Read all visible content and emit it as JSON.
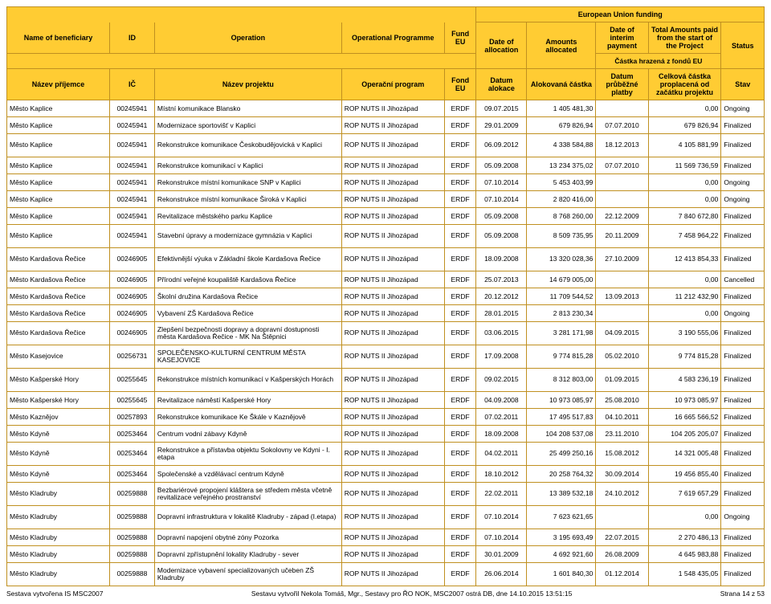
{
  "headers": {
    "euFunding": "European Union funding",
    "en": {
      "beneficiary": "Name of beneficiary",
      "id": "ID",
      "operation": "Operation",
      "programme": "Operational Programme",
      "fund": "Fund EU",
      "dateAlloc": "Date of allocation",
      "amounts": "Amounts allocated",
      "interim": "Date of interim payment",
      "total": "Total Amounts paid from the start of the Project",
      "status": "Status"
    },
    "czSub": "Částka hrazená z fondů EU",
    "cz": {
      "beneficiary": "Název příjemce",
      "id": "IČ",
      "operation": "Název projektu",
      "programme": "Operační program",
      "fund": "Fond EU",
      "dateAlloc": "Datum alokace",
      "amounts": "Alokovaná částka",
      "interim": "Datum průběžné platby",
      "total": "Celková částka proplacená od začátku projektu",
      "status": "Stav"
    }
  },
  "colWidths": [
    "110",
    "48",
    "200",
    "110",
    "34",
    "54",
    "74",
    "56",
    "78",
    "46"
  ],
  "rows": [
    {
      "b": "Město Kaplice",
      "id": "00245941",
      "op": "Místní komunikace Blansko",
      "pg": "ROP NUTS II Jihozápad",
      "fd": "ERDF",
      "da": "09.07.2015",
      "am": "1 405 481,30",
      "di": "",
      "tp": "0,00",
      "st": "Ongoing"
    },
    {
      "b": "Město Kaplice",
      "id": "00245941",
      "op": "Modernizace sportovišť v Kaplici",
      "pg": "ROP NUTS II Jihozápad",
      "fd": "ERDF",
      "da": "29.01.2009",
      "am": "679 826,94",
      "di": "07.07.2010",
      "tp": "679 826,94",
      "st": "Finalized"
    },
    {
      "b": "Město Kaplice",
      "id": "00245941",
      "op": "Rekonstrukce komunikace Českobudějovická v Kaplici",
      "pg": "ROP NUTS II Jihozápad",
      "fd": "ERDF",
      "da": "06.09.2012",
      "am": "4 338 584,88",
      "di": "18.12.2013",
      "tp": "4 105 881,99",
      "st": "Finalized",
      "tall": true
    },
    {
      "b": "Město Kaplice",
      "id": "00245941",
      "op": "Rekonstrukce komunikací v Kaplici",
      "pg": "ROP NUTS II Jihozápad",
      "fd": "ERDF",
      "da": "05.09.2008",
      "am": "13 234 375,02",
      "di": "07.07.2010",
      "tp": "11 569 736,59",
      "st": "Finalized"
    },
    {
      "b": "Město Kaplice",
      "id": "00245941",
      "op": "Rekonstrukce místní komunikace SNP v Kaplici",
      "pg": "ROP NUTS II Jihozápad",
      "fd": "ERDF",
      "da": "07.10.2014",
      "am": "5 453 403,99",
      "di": "",
      "tp": "0,00",
      "st": "Ongoing"
    },
    {
      "b": "Město Kaplice",
      "id": "00245941",
      "op": "Rekonstrukce místní komunikace Široká v Kaplici",
      "pg": "ROP NUTS II Jihozápad",
      "fd": "ERDF",
      "da": "07.10.2014",
      "am": "2 820 416,00",
      "di": "",
      "tp": "0,00",
      "st": "Ongoing"
    },
    {
      "b": "Město Kaplice",
      "id": "00245941",
      "op": "Revitalizace městského parku Kaplice",
      "pg": "ROP NUTS II Jihozápad",
      "fd": "ERDF",
      "da": "05.09.2008",
      "am": "8 768 260,00",
      "di": "22.12.2009",
      "tp": "7 840 672,80",
      "st": "Finalized"
    },
    {
      "b": "Město Kaplice",
      "id": "00245941",
      "op": "Stavební úpravy a modernizace gymnázia v Kaplici",
      "pg": "ROP NUTS II Jihozápad",
      "fd": "ERDF",
      "da": "05.09.2008",
      "am": "8 509 735,95",
      "di": "20.11.2009",
      "tp": "7 458 964,22",
      "st": "Finalized",
      "tall": true
    },
    {
      "b": "Město Kardašova Řečice",
      "id": "00246905",
      "op": "Efektivnější výuka v Základní škole Kardašova Řečice",
      "pg": "ROP NUTS II Jihozápad",
      "fd": "ERDF",
      "da": "18.09.2008",
      "am": "13 320 028,36",
      "di": "27.10.2009",
      "tp": "12 413 854,33",
      "st": "Finalized",
      "tall": true
    },
    {
      "b": "Město Kardašova Řečice",
      "id": "00246905",
      "op": "Přírodní veřejné koupaliště Kardašova Řečice",
      "pg": "ROP NUTS II Jihozápad",
      "fd": "ERDF",
      "da": "25.07.2013",
      "am": "14 679 005,00",
      "di": "",
      "tp": "0,00",
      "st": "Cancelled"
    },
    {
      "b": "Město Kardašova Řečice",
      "id": "00246905",
      "op": "Školní družina Kardašova Řečice",
      "pg": "ROP NUTS II Jihozápad",
      "fd": "ERDF",
      "da": "20.12.2012",
      "am": "11 709 544,52",
      "di": "13.09.2013",
      "tp": "11 212 432,90",
      "st": "Finalized"
    },
    {
      "b": "Město Kardašova Řečice",
      "id": "00246905",
      "op": "Vybavení ZŠ Kardašova Řečice",
      "pg": "ROP NUTS II Jihozápad",
      "fd": "ERDF",
      "da": "28.01.2015",
      "am": "2 813 230,34",
      "di": "",
      "tp": "0,00",
      "st": "Ongoing"
    },
    {
      "b": "Město Kardašova Řečice",
      "id": "00246905",
      "op": "Zlepšení bezpečnosti dopravy a dopravní dostupnosti města Kardašova Řečice - MK Na Štěpnici",
      "pg": "ROP NUTS II Jihozápad",
      "fd": "ERDF",
      "da": "03.06.2015",
      "am": "3 281 171,98",
      "di": "04.09.2015",
      "tp": "3 190 555,06",
      "st": "Finalized",
      "tall": true
    },
    {
      "b": "Město Kasejovice",
      "id": "00256731",
      "op": "SPOLEČENSKO-KULTURNÍ CENTRUM MĚSTA KASEJOVICE",
      "pg": "ROP NUTS II Jihozápad",
      "fd": "ERDF",
      "da": "17.09.2008",
      "am": "9 774 815,28",
      "di": "05.02.2010",
      "tp": "9 774 815,28",
      "st": "Finalized",
      "tall": true
    },
    {
      "b": "Město Kašperské Hory",
      "id": "00255645",
      "op": "Rekonstrukce místních komunikací v Kašperských Horách",
      "pg": "ROP NUTS II Jihozápad",
      "fd": "ERDF",
      "da": "09.02.2015",
      "am": "8 312 803,00",
      "di": "01.09.2015",
      "tp": "4 583 236,19",
      "st": "Finalized",
      "tall": true
    },
    {
      "b": "Město Kašperské Hory",
      "id": "00255645",
      "op": "Revitalizace náměstí Kašperské Hory",
      "pg": "ROP NUTS II Jihozápad",
      "fd": "ERDF",
      "da": "04.09.2008",
      "am": "10 973 085,97",
      "di": "25.08.2010",
      "tp": "10 973 085,97",
      "st": "Finalized"
    },
    {
      "b": "Město Kaznějov",
      "id": "00257893",
      "op": "Rekonstrukce komunikace Ke Škále v Kaznějově",
      "pg": "ROP NUTS II Jihozápad",
      "fd": "ERDF",
      "da": "07.02.2011",
      "am": "17 495 517,83",
      "di": "04.10.2011",
      "tp": "16 665 566,52",
      "st": "Finalized"
    },
    {
      "b": "Město Kdyně",
      "id": "00253464",
      "op": "Centrum vodní zábavy Kdyně",
      "pg": "ROP NUTS II Jihozápad",
      "fd": "ERDF",
      "da": "18.09.2008",
      "am": "104 208 537,08",
      "di": "23.11.2010",
      "tp": "104 205 205,07",
      "st": "Finalized"
    },
    {
      "b": "Město Kdyně",
      "id": "00253464",
      "op": "Rekonstrukce a přístavba objektu Sokolovny ve Kdyni - I. etapa",
      "pg": "ROP NUTS II Jihozápad",
      "fd": "ERDF",
      "da": "04.02.2011",
      "am": "25 499 250,16",
      "di": "15.08.2012",
      "tp": "14 321 005,48",
      "st": "Finalized",
      "tall": true
    },
    {
      "b": "Město Kdyně",
      "id": "00253464",
      "op": "Společenské a vzdělávací centrum Kdyně",
      "pg": "ROP NUTS II Jihozápad",
      "fd": "ERDF",
      "da": "18.10.2012",
      "am": "20 258 764,32",
      "di": "30.09.2014",
      "tp": "19 456 855,40",
      "st": "Finalized"
    },
    {
      "b": "Město Kladruby",
      "id": "00259888",
      "op": "Bezbariérové propojení kláštera se středem města včetně revitalizace veřejného prostranství",
      "pg": "ROP NUTS II Jihozápad",
      "fd": "ERDF",
      "da": "22.02.2011",
      "am": "13 389 532,18",
      "di": "24.10.2012",
      "tp": "7 619 657,29",
      "st": "Finalized",
      "tall": true
    },
    {
      "b": "Město Kladruby",
      "id": "00259888",
      "op": "Dopravní infrastruktura v lokalitě Kladruby - západ (I.etapa)",
      "pg": "ROP NUTS II Jihozápad",
      "fd": "ERDF",
      "da": "07.10.2014",
      "am": "7 623 621,65",
      "di": "",
      "tp": "0,00",
      "st": "Ongoing",
      "tall": true
    },
    {
      "b": "Město Kladruby",
      "id": "00259888",
      "op": "Dopravní napojení obytné zóny Pozorka",
      "pg": "ROP NUTS II Jihozápad",
      "fd": "ERDF",
      "da": "07.10.2014",
      "am": "3 195 693,49",
      "di": "22.07.2015",
      "tp": "2 270 486,13",
      "st": "Finalized"
    },
    {
      "b": "Město Kladruby",
      "id": "00259888",
      "op": "Dopravní zpřístupnění lokality Kladruby - sever",
      "pg": "ROP NUTS II Jihozápad",
      "fd": "ERDF",
      "da": "30.01.2009",
      "am": "4 692 921,60",
      "di": "26.08.2009",
      "tp": "4 645 983,88",
      "st": "Finalized"
    },
    {
      "b": "Město Kladruby",
      "id": "00259888",
      "op": "Modernizace vybavení specializovaných učeben ZŠ Kladruby",
      "pg": "ROP NUTS II Jihozápad",
      "fd": "ERDF",
      "da": "26.06.2014",
      "am": "1 601 840,30",
      "di": "01.12.2014",
      "tp": "1 548 435,05",
      "st": "Finalized",
      "tall": true
    }
  ],
  "footer": {
    "left": "Sestava vytvořena IS MSC2007",
    "center": "Sestavu vytvořil Nekola Tomáš, Mgr., Sestavy pro ŘO NOK, MSC2007 ostrá DB, dne 14.10.2015 13:51:15",
    "right": "Strana 14 z 53"
  }
}
